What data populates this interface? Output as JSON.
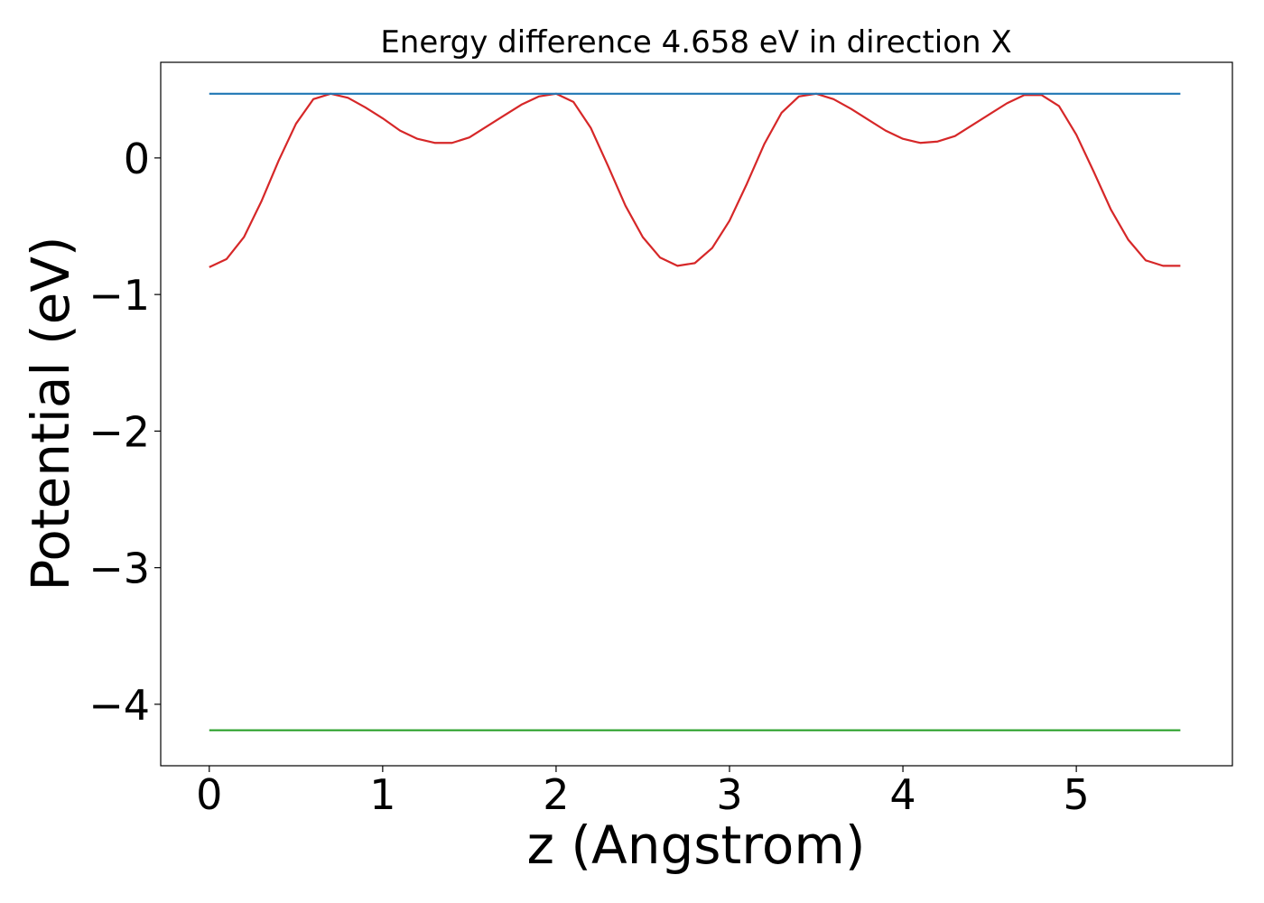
{
  "chart_data": {
    "type": "line",
    "title": "Energy difference 4.658 eV in direction X",
    "xlabel": "z (Angstrom)",
    "ylabel": "Potential (eV)",
    "xlim": [
      -0.28,
      5.9
    ],
    "ylim": [
      -4.45,
      0.7
    ],
    "xticks": [
      0,
      1,
      2,
      3,
      4,
      5
    ],
    "xtick_labels": [
      "0",
      "1",
      "2",
      "3",
      "4",
      "5"
    ],
    "yticks": [
      0,
      -1,
      -2,
      -3,
      -4
    ],
    "ytick_labels": [
      "0",
      "−1",
      "−2",
      "−3",
      "−4"
    ],
    "grid": false,
    "legend": "none",
    "series": [
      {
        "color": "#d62728",
        "x": [
          0.0,
          0.1,
          0.2,
          0.3,
          0.4,
          0.5,
          0.6,
          0.7,
          0.8,
          0.9,
          1.0,
          1.1,
          1.2,
          1.3,
          1.4,
          1.5,
          1.6,
          1.7,
          1.8,
          1.9,
          2.0,
          2.1,
          2.2,
          2.3,
          2.4,
          2.5,
          2.6,
          2.7,
          2.8,
          2.9,
          3.0,
          3.1,
          3.2,
          3.3,
          3.4,
          3.5,
          3.6,
          3.7,
          3.8,
          3.9,
          4.0,
          4.1,
          4.2,
          4.3,
          4.4,
          4.5,
          4.6,
          4.7,
          4.8,
          4.9,
          5.0,
          5.1,
          5.2,
          5.3,
          5.4,
          5.5,
          5.6
        ],
        "y": [
          -0.8,
          -0.74,
          -0.58,
          -0.32,
          -0.02,
          0.25,
          0.43,
          0.47,
          0.44,
          0.37,
          0.29,
          0.2,
          0.14,
          0.11,
          0.11,
          0.15,
          0.23,
          0.31,
          0.39,
          0.45,
          0.47,
          0.41,
          0.22,
          -0.06,
          -0.35,
          -0.58,
          -0.73,
          -0.79,
          -0.77,
          -0.66,
          -0.46,
          -0.19,
          0.1,
          0.33,
          0.45,
          0.47,
          0.43,
          0.36,
          0.28,
          0.2,
          0.14,
          0.11,
          0.12,
          0.16,
          0.24,
          0.32,
          0.4,
          0.46,
          0.46,
          0.38,
          0.17,
          -0.1,
          -0.38,
          -0.6,
          -0.75,
          -0.79,
          -0.79
        ]
      },
      {
        "color": "#1f77b4",
        "x": [
          0.0,
          5.6
        ],
        "y": [
          0.47,
          0.47
        ]
      },
      {
        "color": "#2ca02c",
        "x": [
          0.0,
          5.6
        ],
        "y": [
          -4.19,
          -4.19
        ]
      }
    ]
  }
}
